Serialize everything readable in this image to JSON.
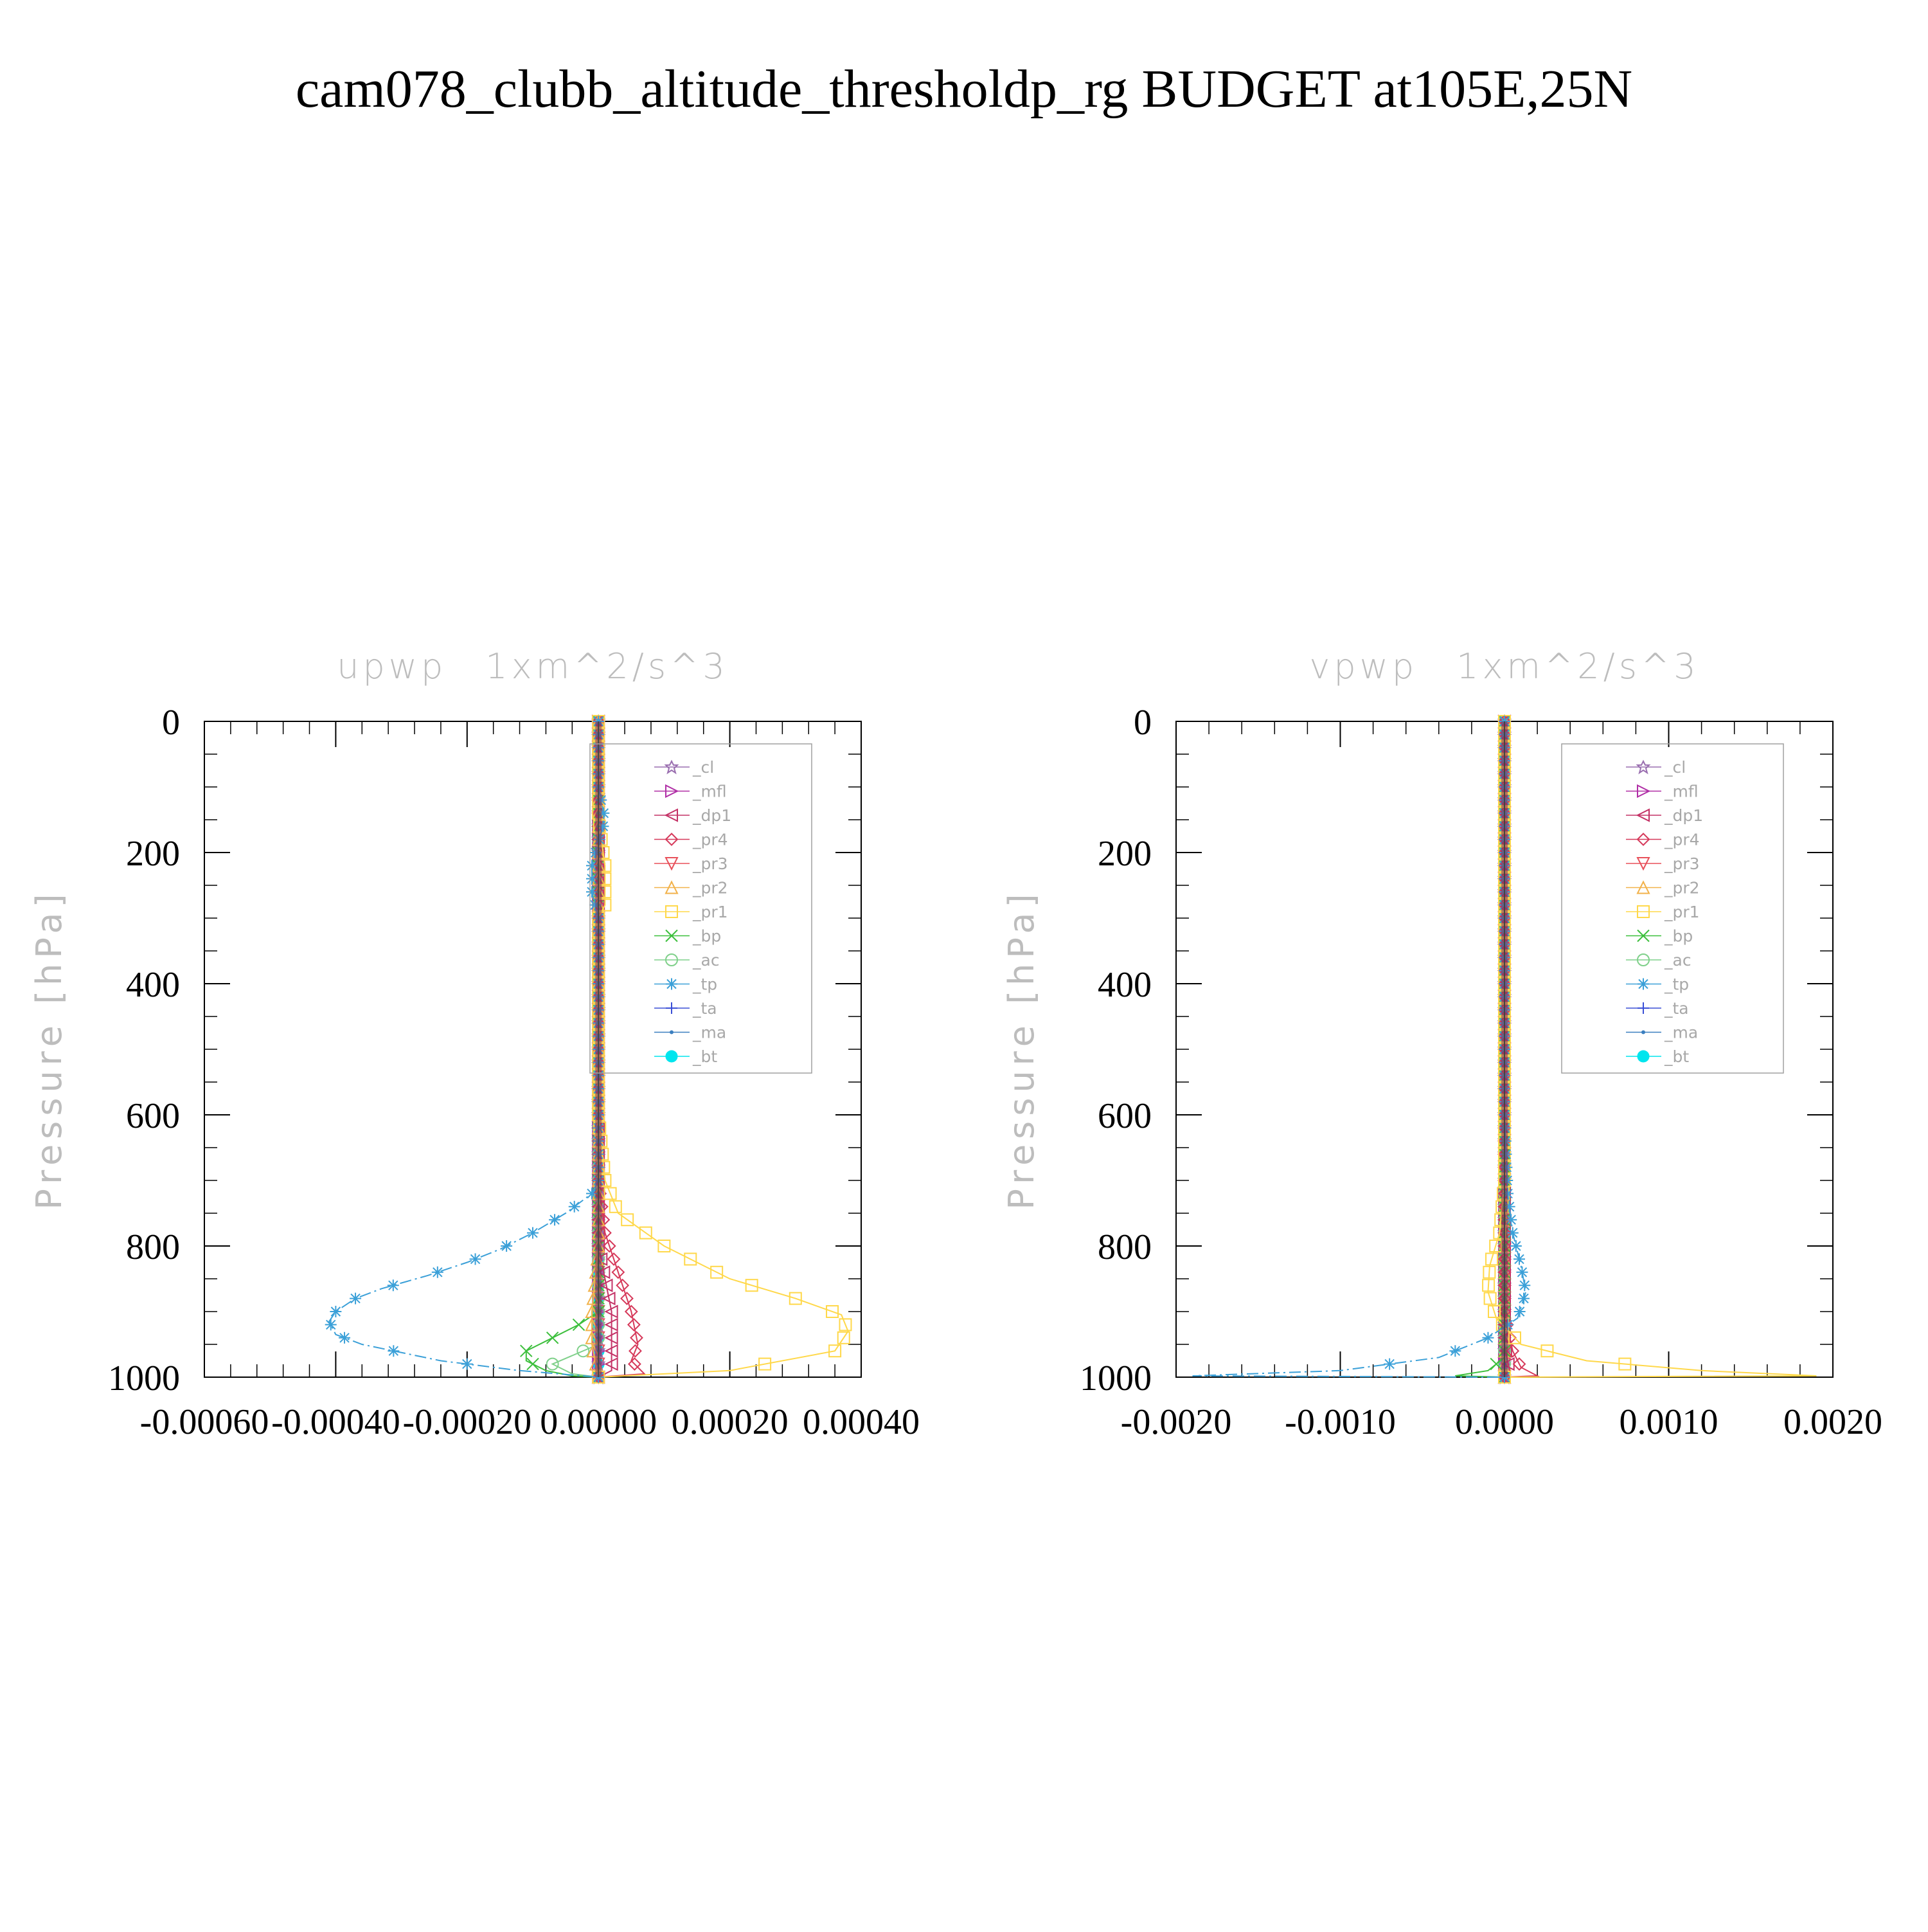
{
  "title": "cam078_clubb_altitude_thresholdp_rg  BUDGET at105E,25N",
  "colors": {
    "cl": "#9a6fb0",
    "mfl": "#b02ea6",
    "dp1": "#c43266",
    "pr4": "#d6395a",
    "pr3": "#e8505a",
    "pr2": "#f2b24a",
    "pr1": "#ffd84a",
    "bp": "#3cbf3c",
    "ac": "#7fd08a",
    "tp": "#3ba0d8",
    "ta": "#3a4fd6",
    "ma": "#3a7fc0",
    "bt": "#00e5ee"
  },
  "legend_entries": [
    "_cl",
    "_mfl",
    "_dp1",
    "_pr4",
    "_pr3",
    "_pr2",
    "_pr1",
    "_bp",
    "_ac",
    "_tp",
    "_ta",
    "_ma",
    "_bt"
  ],
  "chart_data": [
    {
      "type": "line",
      "title": "upwp",
      "units": "1xm^2/s^3",
      "ylabel": "Pressure [hPa]",
      "xlim": [
        -0.0006,
        0.0004
      ],
      "ylim": [
        1000,
        0
      ],
      "y_inverted": true,
      "xticks": [
        "-0.00060",
        "-0.00040",
        "-0.00020",
        "0.00000",
        "0.00020",
        "0.00040"
      ],
      "xtick_values": [
        -0.0006,
        -0.0004,
        -0.0002,
        0.0,
        0.0002,
        0.0004
      ],
      "yticks": [
        "0",
        "200",
        "400",
        "600",
        "800",
        "1000"
      ],
      "ytick_values": [
        0,
        200,
        400,
        600,
        800,
        1000
      ],
      "legend_position": "top-right",
      "series": [
        {
          "name": "_tp",
          "key": "tp",
          "marker": "asterisk",
          "dash": "dashdot",
          "points": [
            [
              0,
              0
            ],
            [
              0,
              100
            ],
            [
              1e-05,
              150
            ],
            [
              -1e-05,
              220
            ],
            [
              -1e-05,
              260
            ],
            [
              0,
              300
            ],
            [
              0,
              400
            ],
            [
              0,
              500
            ],
            [
              0,
              600
            ],
            [
              0,
              700
            ],
            [
              -1e-05,
              720
            ],
            [
              -5e-05,
              750
            ],
            [
              -0.0001,
              780
            ],
            [
              -0.00015,
              805
            ],
            [
              -0.0002,
              825
            ],
            [
              -0.00026,
              845
            ],
            [
              -0.00033,
              865
            ],
            [
              -0.00037,
              880
            ],
            [
              -0.0004,
              900
            ],
            [
              -0.00041,
              915
            ],
            [
              -0.0004,
              935
            ],
            [
              -0.00036,
              950
            ],
            [
              -0.00024,
              975
            ],
            [
              -0.00012,
              990
            ],
            [
              0,
              1000
            ]
          ]
        },
        {
          "name": "_pr1",
          "key": "pr1",
          "marker": "square",
          "dash": "solid",
          "points": [
            [
              0,
              0
            ],
            [
              0,
              150
            ],
            [
              1e-05,
              220
            ],
            [
              1e-05,
              280
            ],
            [
              0,
              300
            ],
            [
              0,
              400
            ],
            [
              0,
              600
            ],
            [
              1e-05,
              700
            ],
            [
              3e-05,
              750
            ],
            [
              0.0001,
              800
            ],
            [
              0.0002,
              850
            ],
            [
              0.0003,
              880
            ],
            [
              0.00037,
              905
            ],
            [
              0.00038,
              930
            ],
            [
              0.00036,
              960
            ],
            [
              0.0002,
              990
            ],
            [
              0.0001,
              995
            ],
            [
              0,
              1000
            ]
          ]
        },
        {
          "name": "_pr2",
          "key": "pr2",
          "marker": "triangle-up",
          "dash": "solid",
          "points": [
            [
              0,
              0
            ],
            [
              0,
              400
            ],
            [
              0,
              800
            ],
            [
              -1e-05,
              900
            ],
            [
              -1e-05,
              950
            ],
            [
              0,
              1000
            ]
          ]
        },
        {
          "name": "_pr4",
          "key": "pr4",
          "marker": "diamond",
          "dash": "solid",
          "points": [
            [
              0,
              0
            ],
            [
              0,
              700
            ],
            [
              1e-05,
              780
            ],
            [
              3e-05,
              840
            ],
            [
              5e-05,
              900
            ],
            [
              6e-05,
              950
            ],
            [
              5e-05,
              975
            ],
            [
              7e-05,
              995
            ],
            [
              0,
              1000
            ]
          ]
        },
        {
          "name": "_dp1",
          "key": "dp1",
          "marker": "triangle-left",
          "dash": "solid",
          "points": [
            [
              0,
              0
            ],
            [
              0,
              800
            ],
            [
              1e-05,
              850
            ],
            [
              2e-05,
              900
            ],
            [
              2e-05,
              950
            ],
            [
              2e-05,
              990
            ],
            [
              0,
              1000
            ]
          ]
        },
        {
          "name": "_bp",
          "key": "bp",
          "marker": "x",
          "dash": "solid",
          "points": [
            [
              0,
              0
            ],
            [
              0,
              900
            ],
            [
              -3e-05,
              920
            ],
            [
              -7e-05,
              940
            ],
            [
              -0.00011,
              960
            ],
            [
              -0.00011,
              975
            ],
            [
              -8e-05,
              990
            ],
            [
              -4e-05,
              998
            ],
            [
              0,
              1000
            ]
          ]
        },
        {
          "name": "_ac",
          "key": "ac",
          "marker": "circle",
          "dash": "solid",
          "points": [
            [
              0,
              0
            ],
            [
              0,
              950
            ],
            [
              -7e-05,
              980
            ],
            [
              -4e-05,
              995
            ],
            [
              0,
              1000
            ]
          ]
        },
        {
          "name": "_cl",
          "key": "cl",
          "marker": "star",
          "dash": "solid",
          "points": [
            [
              0,
              0
            ],
            [
              0,
              1000
            ]
          ]
        },
        {
          "name": "_mfl",
          "key": "mfl",
          "marker": "triangle-right",
          "dash": "solid",
          "points": [
            [
              0,
              0
            ],
            [
              0,
              1000
            ]
          ]
        },
        {
          "name": "_pr3",
          "key": "pr3",
          "marker": "triangle-down",
          "dash": "solid",
          "points": [
            [
              0,
              0
            ],
            [
              0,
              1000
            ]
          ]
        },
        {
          "name": "_ta",
          "key": "ta",
          "marker": "plus",
          "dash": "solid",
          "points": [
            [
              0,
              0
            ],
            [
              0,
              1000
            ]
          ]
        },
        {
          "name": "_ma",
          "key": "ma",
          "marker": "dot",
          "dash": "solid",
          "points": [
            [
              0,
              0
            ],
            [
              0,
              1000
            ]
          ]
        },
        {
          "name": "_bt",
          "key": "bt",
          "marker": "filled-circle",
          "dash": "solid",
          "points": [
            [
              0,
              0
            ],
            [
              0,
              1000
            ]
          ]
        }
      ]
    },
    {
      "type": "line",
      "title": "vpwp",
      "units": "1xm^2/s^3",
      "ylabel": "Pressure [hPa]",
      "xlim": [
        -0.002,
        0.002
      ],
      "ylim": [
        1000,
        0
      ],
      "y_inverted": true,
      "xticks": [
        "-0.0020",
        "-0.0010",
        "0.0000",
        "0.0010",
        "0.0020"
      ],
      "xtick_values": [
        -0.002,
        -0.001,
        0.0,
        0.001,
        0.002
      ],
      "yticks": [
        "0",
        "200",
        "400",
        "600",
        "800",
        "1000"
      ],
      "ytick_values": [
        0,
        200,
        400,
        600,
        800,
        1000
      ],
      "legend_position": "top-right",
      "series": [
        {
          "name": "_tp",
          "key": "tp",
          "marker": "asterisk",
          "dash": "dashdot",
          "points": [
            [
              0,
              0
            ],
            [
              0,
              600
            ],
            [
              2e-05,
              720
            ],
            [
              5e-05,
              780
            ],
            [
              0.0001,
              830
            ],
            [
              0.00013,
              870
            ],
            [
              8e-05,
              910
            ],
            [
              -0.0001,
              940
            ],
            [
              -0.0004,
              970
            ],
            [
              -0.001,
              990
            ],
            [
              -0.0019,
              998
            ],
            [
              0,
              1000
            ]
          ]
        },
        {
          "name": "_pr1",
          "key": "pr1",
          "marker": "square",
          "dash": "solid",
          "points": [
            [
              0,
              0
            ],
            [
              0,
              700
            ],
            [
              -3e-05,
              780
            ],
            [
              -9e-05,
              830
            ],
            [
              -0.0001,
              870
            ],
            [
              -5e-05,
              910
            ],
            [
              0.0001,
              950
            ],
            [
              0.0005,
              975
            ],
            [
              0.0012,
              990
            ],
            [
              0.0019,
              998
            ],
            [
              0,
              1000
            ]
          ]
        },
        {
          "name": "_pr4",
          "key": "pr4",
          "marker": "diamond",
          "dash": "solid",
          "points": [
            [
              0,
              0
            ],
            [
              0,
              900
            ],
            [
              5e-05,
              960
            ],
            [
              0.0001,
              985
            ],
            [
              0.0002,
              998
            ],
            [
              0,
              1000
            ]
          ]
        },
        {
          "name": "_bp",
          "key": "bp",
          "marker": "x",
          "dash": "solid",
          "points": [
            [
              0,
              0
            ],
            [
              0,
              970
            ],
            [
              -0.0001,
              990
            ],
            [
              -0.0003,
              998
            ],
            [
              0,
              1000
            ]
          ]
        },
        {
          "name": "_dp1",
          "key": "dp1",
          "marker": "triangle-left",
          "dash": "solid",
          "points": [
            [
              0,
              0
            ],
            [
              0,
              950
            ],
            [
              3e-05,
              990
            ],
            [
              0,
              1000
            ]
          ]
        },
        {
          "name": "_pr2",
          "key": "pr2",
          "marker": "triangle-up",
          "dash": "solid",
          "points": [
            [
              0,
              0
            ],
            [
              0,
              1000
            ]
          ]
        },
        {
          "name": "_ac",
          "key": "ac",
          "marker": "circle",
          "dash": "solid",
          "points": [
            [
              0,
              0
            ],
            [
              0,
              1000
            ]
          ]
        },
        {
          "name": "_cl",
          "key": "cl",
          "marker": "star",
          "dash": "solid",
          "points": [
            [
              0,
              0
            ],
            [
              0,
              1000
            ]
          ]
        },
        {
          "name": "_mfl",
          "key": "mfl",
          "marker": "triangle-right",
          "dash": "solid",
          "points": [
            [
              0,
              0
            ],
            [
              0,
              1000
            ]
          ]
        },
        {
          "name": "_pr3",
          "key": "pr3",
          "marker": "triangle-down",
          "dash": "solid",
          "points": [
            [
              0,
              0
            ],
            [
              0,
              1000
            ]
          ]
        },
        {
          "name": "_ta",
          "key": "ta",
          "marker": "plus",
          "dash": "solid",
          "points": [
            [
              0,
              0
            ],
            [
              0,
              1000
            ]
          ]
        },
        {
          "name": "_ma",
          "key": "ma",
          "marker": "dot",
          "dash": "solid",
          "points": [
            [
              0,
              0
            ],
            [
              0,
              1000
            ]
          ]
        },
        {
          "name": "_bt",
          "key": "bt",
          "marker": "filled-circle",
          "dash": "solid",
          "points": [
            [
              0,
              0
            ],
            [
              0,
              1000
            ]
          ]
        }
      ]
    }
  ]
}
